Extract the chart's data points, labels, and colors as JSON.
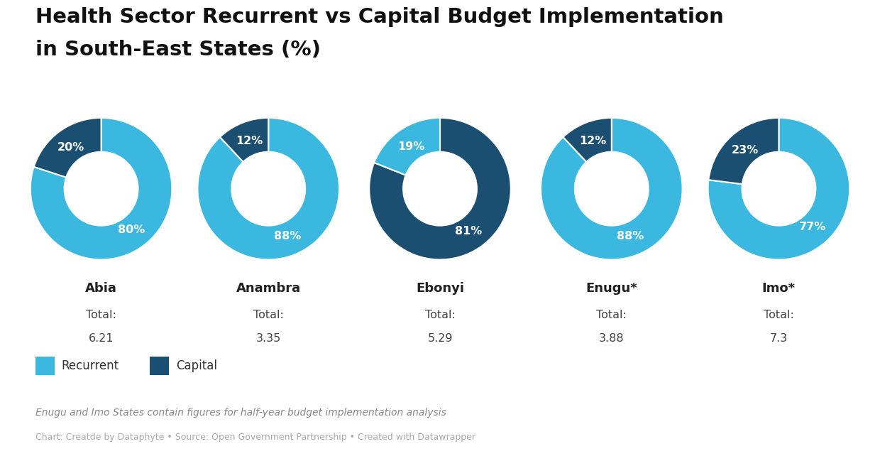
{
  "title_line1": "Health Sector Recurrent vs Capital Budget Implementation",
  "title_line2": "in South-East States (%)",
  "states": [
    "Abia",
    "Anambra",
    "Ebonyi",
    "Enugu*",
    "Imo*"
  ],
  "totals": [
    "6.21",
    "3.35",
    "5.29",
    "3.88",
    "7.3"
  ],
  "recurrent": [
    80,
    88,
    81,
    88,
    77
  ],
  "capital": [
    20,
    12,
    19,
    12,
    23
  ],
  "colors": [
    [
      "#3BB8E0",
      "#1B4F72"
    ],
    [
      "#3BB8E0",
      "#1B4F72"
    ],
    [
      "#1B4F72",
      "#3BB8E0"
    ],
    [
      "#3BB8E0",
      "#1B4F72"
    ],
    [
      "#3BB8E0",
      "#1B4F72"
    ]
  ],
  "recurrent_color": "#3BB8E0",
  "capital_color": "#1B4F72",
  "background_color": "#FFFFFF",
  "title_fontsize": 21,
  "footnote1": "Enugu and Imo States contain figures for half-year budget implementation analysis",
  "footnote2": "Chart: Creatde by Dataphyte • Source: Open Government Partnership • Created with Datawrapper",
  "legend_recurrent": "Recurrent",
  "legend_capital": "Capital"
}
